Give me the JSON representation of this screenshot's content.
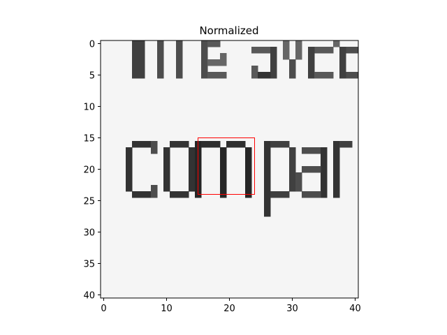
{
  "chart_data": {
    "type": "heatmap",
    "title": "Normalized",
    "xlabel": "",
    "ylabel": "",
    "colormap": "gray",
    "xlim": [
      -0.5,
      40.5
    ],
    "ylim": [
      40.5,
      -0.5
    ],
    "x_ticks": [
      0,
      10,
      20,
      30,
      40
    ],
    "y_ticks": [
      0,
      5,
      10,
      15,
      20,
      25,
      30,
      35,
      40
    ],
    "rows": 41,
    "cols": 41,
    "highlight_box": {
      "color": "#ff0000",
      "x0": 15,
      "y0": 15,
      "x1": 24,
      "y1": 24
    },
    "visible_text_in_image": "compa"
  },
  "colors": {
    "background": "#f5f5f5",
    "ink": "#1e1e1e",
    "box": "#ff0000"
  }
}
